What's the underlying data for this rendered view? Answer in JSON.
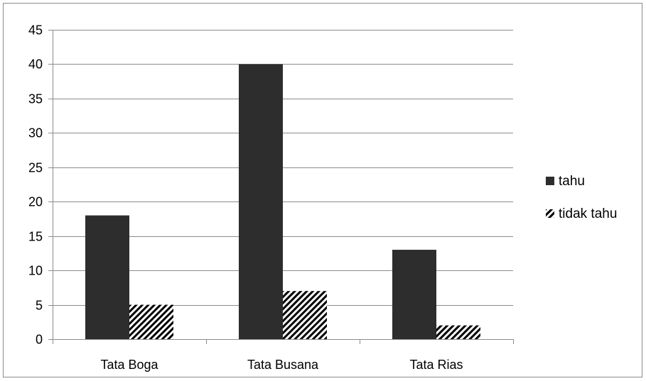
{
  "chart_data": {
    "type": "bar",
    "categories": [
      "Tata Boga",
      "Tata Busana",
      "Tata Rias"
    ],
    "series": [
      {
        "name": "tahu",
        "values": [
          18,
          40,
          13
        ],
        "color": "#2d2d2d",
        "pattern": "solid"
      },
      {
        "name": "tidak tahu",
        "values": [
          5,
          7,
          2
        ],
        "color": "#000000",
        "pattern": "diagonal-stripes"
      }
    ],
    "ylim": [
      0,
      45
    ],
    "yticks": [
      0,
      5,
      10,
      15,
      20,
      25,
      30,
      35,
      40,
      45
    ],
    "grid": true,
    "legend_position": "right",
    "title": "",
    "xlabel": "",
    "ylabel": ""
  }
}
